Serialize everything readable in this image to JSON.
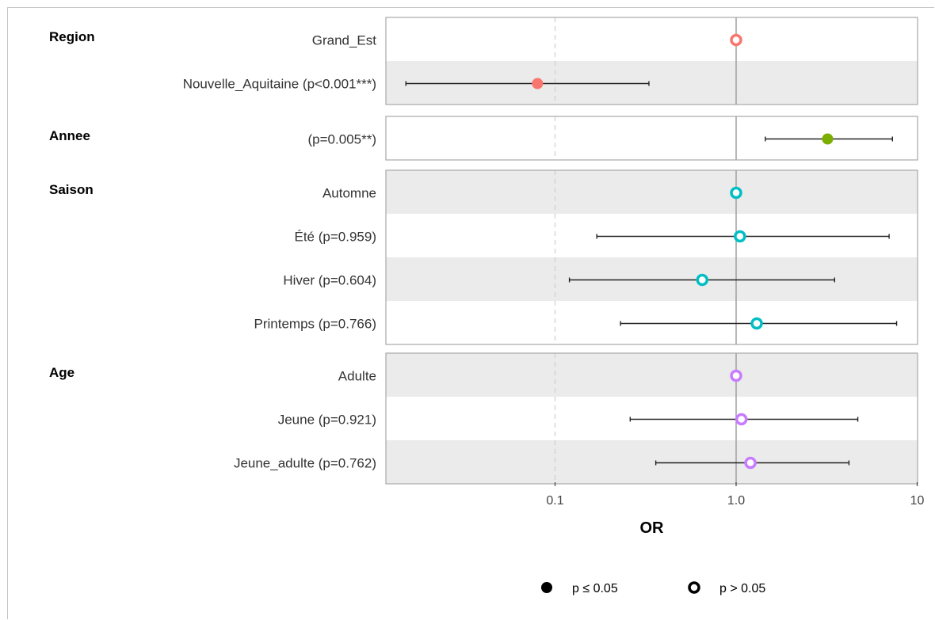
{
  "chart_data": {
    "type": "forest",
    "xlabel": "OR",
    "x_scale": "log",
    "xlim": [
      0.01,
      10
    ],
    "xticks": [
      {
        "value": 0.1,
        "label": "0.1"
      },
      {
        "value": 1.0,
        "label": "1.0"
      },
      {
        "value": 10,
        "label": "10"
      }
    ],
    "reference_line": 1.0,
    "dashed_line": 0.1,
    "groups": [
      {
        "name": "Region",
        "color": "#F8766D",
        "rows": [
          {
            "label": "Grand_Est",
            "or": 1.0,
            "lo": null,
            "hi": null,
            "significant": false
          },
          {
            "label": "Nouvelle_Aquitaine (p<0.001***)",
            "or": 0.08,
            "lo": 0.015,
            "hi": 0.33,
            "significant": true
          }
        ]
      },
      {
        "name": "Annee",
        "color": "#7CAE00",
        "rows": [
          {
            "label": "(p=0.005**)",
            "or": 3.2,
            "lo": 1.45,
            "hi": 7.3,
            "significant": true
          }
        ]
      },
      {
        "name": "Saison",
        "color": "#00BFC4",
        "rows": [
          {
            "label": "Automne",
            "or": 1.0,
            "lo": null,
            "hi": null,
            "significant": false
          },
          {
            "label": "Été (p=0.959)",
            "or": 1.05,
            "lo": 0.17,
            "hi": 7.0,
            "significant": false
          },
          {
            "label": "Hiver (p=0.604)",
            "or": 0.65,
            "lo": 0.12,
            "hi": 3.5,
            "significant": false
          },
          {
            "label": "Printemps (p=0.766)",
            "or": 1.3,
            "lo": 0.23,
            "hi": 7.7,
            "significant": false
          }
        ]
      },
      {
        "name": "Age",
        "color": "#C77CFF",
        "rows": [
          {
            "label": "Adulte",
            "or": 1.0,
            "lo": null,
            "hi": null,
            "significant": false
          },
          {
            "label": "Jeune (p=0.921)",
            "or": 1.07,
            "lo": 0.26,
            "hi": 4.7,
            "significant": false
          },
          {
            "label": "Jeune_adulte (p=0.762)",
            "or": 1.2,
            "lo": 0.36,
            "hi": 4.2,
            "significant": false
          }
        ]
      }
    ],
    "legend": {
      "position": "bottom",
      "items": [
        {
          "label": "p ≤ 0.05",
          "filled": true
        },
        {
          "label": "p > 0.05",
          "filled": false
        }
      ]
    }
  }
}
